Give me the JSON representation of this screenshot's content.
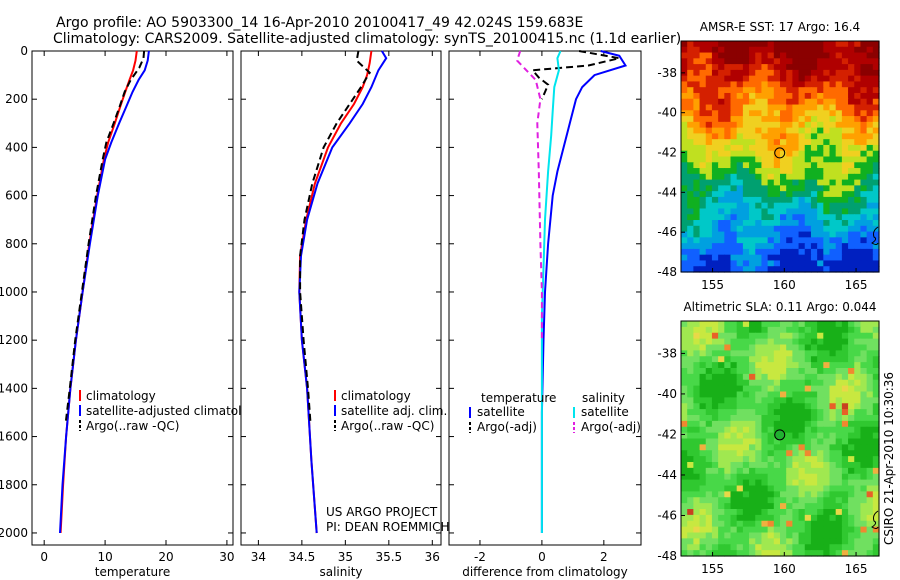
{
  "header": {
    "line1": "Argo profile: AO 5903300_14 16-Apr-2010 20100417_49 42.024S 159.683E",
    "line2": "Climatology: CARS2009. Satellite-adjusted climatology: synTS_20100415.nc (1.1d earlier)"
  },
  "side_note": "CSIRO 21-Apr-2010 10:30:36",
  "project_note": {
    "line1": "US ARGO PROJECT",
    "line2": "PI: DEAN ROEMMICH"
  },
  "colors": {
    "clim": "#ff0000",
    "sat": "#0000ff",
    "argo": "#000000",
    "sat_sal": "#00e5ee",
    "argo_sal": "#e020e0"
  },
  "chart_data": [
    {
      "id": "temperature",
      "type": "line",
      "xlabel": "temperature",
      "ylabel": "",
      "xlim": [
        -2,
        31
      ],
      "ylim": [
        0,
        2050
      ],
      "xticks": [
        0,
        10,
        20,
        30
      ],
      "xtick_labels": [
        "0",
        "10",
        "20",
        "30"
      ],
      "yticks": [
        0,
        200,
        400,
        600,
        800,
        1000,
        1200,
        1400,
        1600,
        1800,
        2000
      ],
      "ytick_labels": [
        "0",
        "200",
        "400",
        "600",
        "800",
        "1000",
        "1200",
        "1400",
        "1600",
        "1800",
        "2000"
      ],
      "legend": {
        "placement": "lower-right",
        "items": [
          "climatology",
          "satellite-adjusted climatology",
          "Argo(..raw -QC)"
        ]
      },
      "series": [
        {
          "name": "climatology",
          "color": "#ff0000",
          "x": [
            15.2,
            15.0,
            14.6,
            14.0,
            13.3,
            12.5,
            11.6,
            10.5,
            9.8,
            8.7,
            7.4,
            6.3,
            5.2,
            4.3,
            3.6,
            3.1,
            2.7
          ],
          "y": [
            0,
            40,
            80,
            120,
            170,
            230,
            300,
            380,
            450,
            600,
            800,
            1000,
            1200,
            1400,
            1600,
            1800,
            2000
          ]
        },
        {
          "name": "satellite-adjusted climatology",
          "color": "#0000ff",
          "x": [
            17.2,
            17.0,
            16.5,
            15.5,
            14.5,
            13.5,
            12.3,
            11.0,
            10.0,
            8.8,
            7.5,
            6.3,
            5.2,
            4.3,
            3.6,
            3.0,
            2.6
          ],
          "y": [
            0,
            40,
            80,
            120,
            170,
            230,
            300,
            380,
            450,
            600,
            800,
            1000,
            1200,
            1400,
            1600,
            1800,
            2000
          ]
        },
        {
          "name": "Argo(..raw -QC)",
          "color": "#000000",
          "x": [
            16.4,
            16.3,
            15.6,
            14.2,
            13.2,
            12.4,
            11.4,
            10.2,
            9.6,
            8.5,
            7.3,
            6.2,
            5.1,
            4.2,
            3.5
          ],
          "y": [
            0,
            30,
            70,
            120,
            170,
            230,
            300,
            380,
            450,
            600,
            800,
            1000,
            1200,
            1400,
            1550
          ]
        }
      ]
    },
    {
      "id": "salinity",
      "type": "line",
      "xlabel": "salinity",
      "ylabel": "",
      "xlim": [
        33.8,
        36.1
      ],
      "ylim": [
        0,
        2050
      ],
      "xticks": [
        34,
        34.5,
        35,
        35.5,
        36
      ],
      "xtick_labels": [
        "34",
        "34.5",
        "35",
        "35.5",
        "36"
      ],
      "legend": {
        "placement": "lower-right",
        "items": [
          "climatology",
          "satellite adj. clim.",
          "Argo(..raw -QC)"
        ]
      },
      "series": [
        {
          "name": "climatology",
          "color": "#ff0000",
          "x": [
            35.3,
            35.28,
            35.25,
            35.2,
            35.1,
            34.95,
            34.8,
            34.65,
            34.55,
            34.48,
            34.47,
            34.5,
            34.56,
            34.61,
            34.67
          ],
          "y": [
            0,
            50,
            100,
            150,
            220,
            300,
            400,
            550,
            700,
            850,
            1000,
            1200,
            1400,
            1700,
            2000
          ]
        },
        {
          "name": "satellite adj. clim.",
          "color": "#0000ff",
          "x": [
            35.42,
            35.47,
            35.38,
            35.3,
            35.2,
            35.05,
            34.85,
            34.68,
            34.56,
            34.49,
            34.47,
            34.5,
            34.56,
            34.61,
            34.67
          ],
          "y": [
            0,
            30,
            80,
            150,
            220,
            300,
            400,
            550,
            700,
            850,
            1000,
            1200,
            1400,
            1700,
            2000
          ]
        },
        {
          "name": "Argo(..raw -QC)",
          "color": "#000000",
          "x": [
            35.15,
            35.13,
            35.28,
            35.18,
            35.05,
            34.9,
            34.75,
            34.62,
            34.53,
            34.48,
            34.48,
            34.52,
            34.57,
            34.6
          ],
          "y": [
            0,
            40,
            90,
            150,
            220,
            300,
            400,
            550,
            700,
            850,
            1000,
            1200,
            1400,
            1550
          ]
        }
      ]
    },
    {
      "id": "difference",
      "type": "line",
      "xlabel": "difference from climatology",
      "ylabel": "",
      "xlim": [
        -3,
        3.2
      ],
      "ylim": [
        0,
        2050
      ],
      "xticks": [
        -2,
        0,
        2
      ],
      "xtick_labels": [
        "-2",
        "0",
        "2"
      ],
      "legend": {
        "placement": "lower-center",
        "temperature_heading": "temperature",
        "salinity_heading": "salinity",
        "items": [
          "satellite",
          "Argo(-adj)",
          "satellite",
          "Argo(-adj)"
        ]
      },
      "series": [
        {
          "name": "temperature satellite",
          "color": "#0000ff",
          "x": [
            1.9,
            2.5,
            2.7,
            1.7,
            1.3,
            1.1,
            0.9,
            0.7,
            0.5,
            0.35,
            0.2,
            0.1,
            0.05,
            0.0,
            0.0
          ],
          "y": [
            0,
            20,
            60,
            100,
            150,
            200,
            300,
            400,
            500,
            600,
            800,
            1000,
            1200,
            1500,
            2000
          ]
        },
        {
          "name": "temperature Argo(-adj)",
          "color": "#000000",
          "x": [
            1.2,
            2.5,
            1.5,
            -0.3,
            -0.1,
            0.2,
            0.1,
            0.0
          ],
          "y": [
            0,
            30,
            60,
            80,
            110,
            140,
            170,
            200
          ]
        },
        {
          "name": "salinity satellite",
          "color": "#00e5ee",
          "x": [
            0.6,
            0.5,
            0.55,
            0.4,
            0.35,
            0.3,
            0.2,
            0.1,
            0.05,
            0.0,
            0.0,
            0.0,
            0.0
          ],
          "y": [
            0,
            30,
            80,
            150,
            250,
            350,
            500,
            700,
            900,
            1100,
            1300,
            1600,
            2000
          ]
        },
        {
          "name": "salinity Argo(-adj)",
          "color": "#e020e0",
          "x": [
            -0.7,
            -0.8,
            -0.5,
            -0.2,
            -0.05,
            -0.15,
            -0.1,
            -0.05,
            0.0,
            0.0
          ],
          "y": [
            0,
            40,
            80,
            120,
            200,
            300,
            500,
            800,
            1000,
            1200
          ]
        }
      ]
    },
    {
      "id": "sst_map",
      "type": "heatmap",
      "title": "AMSR-E SST: 17 Argo: 16.4",
      "xlim": [
        152.8,
        166.6
      ],
      "ylim": [
        -48,
        -36.4
      ],
      "xticks": [
        155,
        160,
        165
      ],
      "xtick_labels": [
        "155",
        "160",
        "165"
      ],
      "yticks": [
        -38,
        -40,
        -42,
        -44,
        -46,
        -48
      ],
      "ytick_labels": [
        "-38",
        "-40",
        "-42",
        "-44",
        "-46",
        "-48"
      ],
      "marker": {
        "lon": 159.68,
        "lat": -42.02
      },
      "zones": [
        {
          "lat_from": -36.4,
          "lat_to": -39.8,
          "color": "#b00000"
        },
        {
          "lat_from": -39.8,
          "lat_to": -41.4,
          "color": "#ff6a00"
        },
        {
          "lat_from": -41.4,
          "lat_to": -42.8,
          "color": "#f0d020"
        },
        {
          "lat_from": -42.8,
          "lat_to": -44.6,
          "color": "#10b020"
        },
        {
          "lat_from": -44.6,
          "lat_to": -46.4,
          "color": "#00c8c8"
        },
        {
          "lat_from": -46.4,
          "lat_to": -48,
          "color": "#1060ff"
        }
      ]
    },
    {
      "id": "sla_map",
      "type": "heatmap",
      "title": "Altimetric SLA: 0.11 Argo: 0.044",
      "xlim": [
        152.8,
        166.6
      ],
      "ylim": [
        -48,
        -36.4
      ],
      "xticks": [
        155,
        160,
        165
      ],
      "xtick_labels": [
        "155",
        "160",
        "165"
      ],
      "yticks": [
        -38,
        -40,
        -42,
        -44,
        -46,
        -48
      ],
      "ytick_labels": [
        "-38",
        "-40",
        "-42",
        "-44",
        "-46",
        "-48"
      ],
      "marker": {
        "lon": 159.68,
        "lat": -42.02
      },
      "zones": [
        {
          "lat_from": -36.4,
          "lat_to": -48,
          "color": "#40d040"
        }
      ]
    }
  ]
}
